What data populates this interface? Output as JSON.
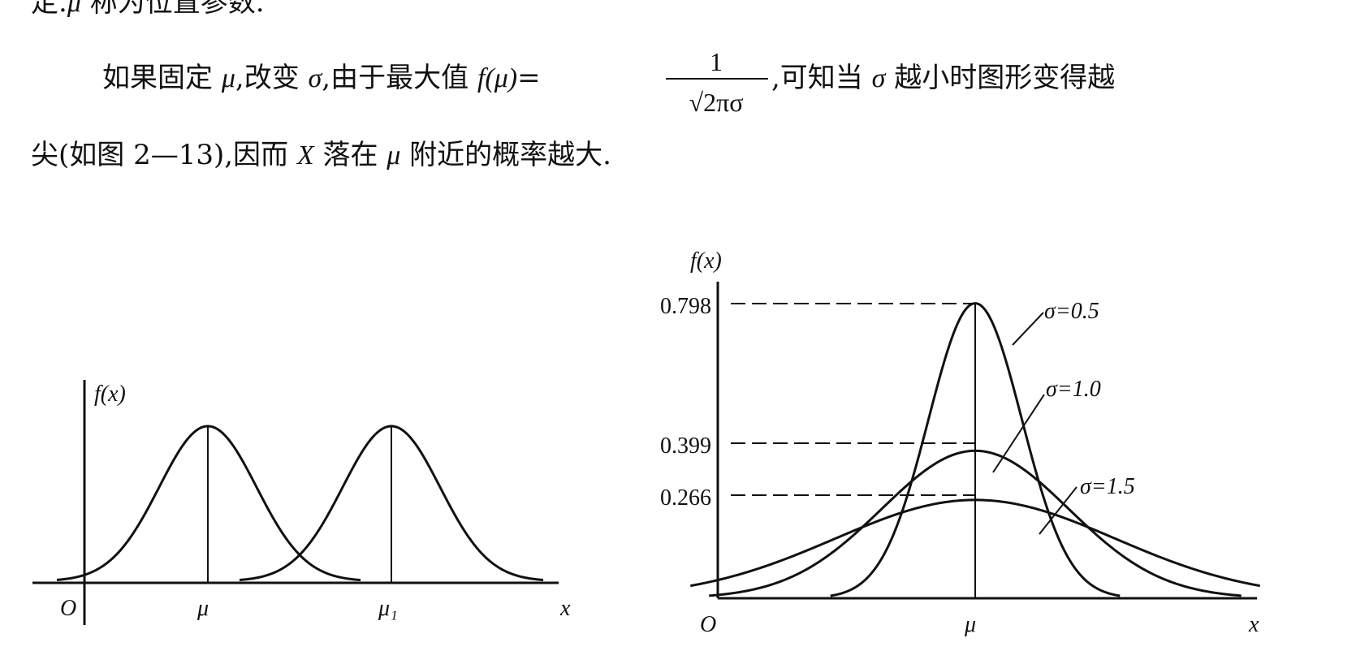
{
  "text": {
    "line0": {
      "prefix": "定.",
      "mu": "μ",
      "suffix": "称为位置参数."
    },
    "line1": {
      "part_a": "如果固定",
      "mu": "μ",
      "part_b": ",改变",
      "sigma": "σ",
      "part_c": ",由于最大值",
      "f_mu": "f(μ)",
      "equals": "=",
      "frac_numerator": "1",
      "frac_denominator": "√2πσ",
      "part_d": ",可知当",
      "sigma2": "σ",
      "part_e": "越小时图形变得越"
    },
    "line2": {
      "part_a": "尖(如图 2—13),因而",
      "x": "X",
      "part_b": "落在",
      "mu": "μ",
      "part_c": "附近的概率越大."
    }
  },
  "left_figure": {
    "y_label": "f(x)",
    "origin_label": "O",
    "mu_label": "μ",
    "mu1_label": "μ₁",
    "x_label": "x"
  },
  "right_figure": {
    "y_label": "f(x)",
    "origin_label": "O",
    "mu_label": "μ",
    "x_label": "x"
  },
  "chart_data": [
    {
      "type": "line",
      "description_in_figure": "",
      "series": [
        {
          "center": "μ",
          "peak": 1.0
        },
        {
          "center": "μ₁",
          "peak": 1.0
        }
      ],
      "xlabel": "x",
      "ylabel": "f(x)",
      "grid": false
    },
    {
      "type": "line",
      "xlabel": "x",
      "ylabel": "f(x)",
      "y_ticks": [
        "0.798",
        "0.399",
        "0.266"
      ],
      "series": [
        {
          "name": "σ=0.5",
          "sigma": 0.5,
          "peak": 0.798
        },
        {
          "name": "σ=1.0",
          "sigma": 1.0,
          "peak": 0.399
        },
        {
          "name": "σ=1.5",
          "sigma": 1.5,
          "peak": 0.266
        }
      ],
      "x_range": [
        -3.1,
        3.1
      ],
      "grid": false
    }
  ]
}
